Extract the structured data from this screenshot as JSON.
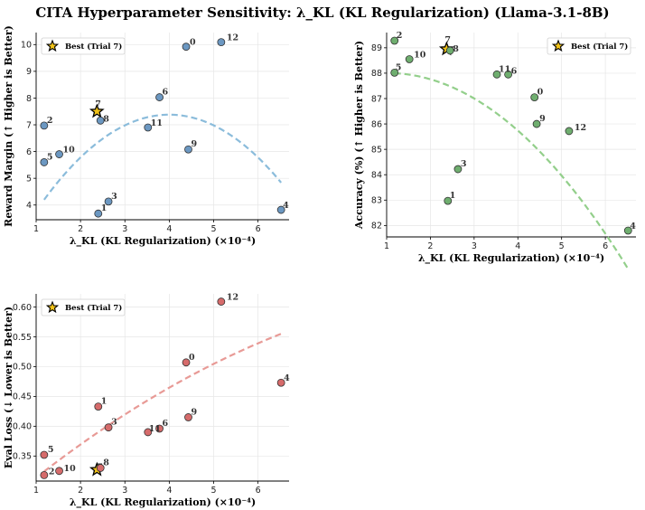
{
  "figure_title": "CITA Hyperparameter Sensitivity: λ_KL (KL Regularization) (Llama-3.1-8B)",
  "chart_data": [
    {
      "type": "scatter",
      "id": "reward",
      "ylabel": "Reward Margin (↑ Higher is Better)",
      "xlabel": "λ_KL (KL Regularization) (×10⁻⁴)",
      "xlim": [
        1.0,
        6.7
      ],
      "ylim": [
        3.45,
        10.45
      ],
      "xticks": [
        1,
        2,
        3,
        4,
        5,
        6
      ],
      "yticks": [
        4,
        5,
        6,
        7,
        8,
        9,
        10
      ],
      "color": "#6c98c2",
      "trend_color": "#8bbcdb",
      "legend": {
        "label": "Best (Trial 7)",
        "placement": "upper-left"
      },
      "best_trial": 7,
      "points": [
        {
          "trial": "0",
          "x": 4.38,
          "y": 9.92
        },
        {
          "trial": "1",
          "x": 2.4,
          "y": 3.68
        },
        {
          "trial": "2",
          "x": 1.18,
          "y": 6.97
        },
        {
          "trial": "3",
          "x": 2.63,
          "y": 4.13
        },
        {
          "trial": "4",
          "x": 6.52,
          "y": 3.82
        },
        {
          "trial": "5",
          "x": 1.18,
          "y": 5.6
        },
        {
          "trial": "6",
          "x": 3.78,
          "y": 8.03
        },
        {
          "trial": "7",
          "x": 2.37,
          "y": 7.5
        },
        {
          "trial": "8",
          "x": 2.45,
          "y": 7.16
        },
        {
          "trial": "9",
          "x": 4.43,
          "y": 6.08
        },
        {
          "trial": "10",
          "x": 1.52,
          "y": 5.9
        },
        {
          "trial": "11",
          "x": 3.52,
          "y": 6.9
        },
        {
          "trial": "12",
          "x": 5.17,
          "y": 10.09
        }
      ],
      "trend": [
        -0.4,
        3.2,
        0.98
      ]
    },
    {
      "type": "scatter",
      "id": "accuracy",
      "ylabel": "Accuracy (%) (↑ Higher is Better)",
      "xlabel": "λ_KL (KL Regularization) (×10⁻⁴)",
      "xlim": [
        1.0,
        6.7
      ],
      "ylim": [
        81.55,
        89.6
      ],
      "xticks": [
        1,
        2,
        3,
        4,
        5,
        6
      ],
      "yticks": [
        82,
        83,
        84,
        85,
        86,
        87,
        88,
        89
      ],
      "color": "#6fae6f",
      "trend_color": "#93cf8b",
      "legend": {
        "label": "Best (Trial 7)",
        "placement": "upper-right"
      },
      "best_trial": 7,
      "points": [
        {
          "trial": "0",
          "x": 4.38,
          "y": 87.05
        },
        {
          "trial": "1",
          "x": 2.4,
          "y": 82.97
        },
        {
          "trial": "2",
          "x": 1.18,
          "y": 89.28
        },
        {
          "trial": "3",
          "x": 2.63,
          "y": 84.22
        },
        {
          "trial": "4",
          "x": 6.52,
          "y": 81.8
        },
        {
          "trial": "5",
          "x": 1.18,
          "y": 88.02
        },
        {
          "trial": "6",
          "x": 3.78,
          "y": 87.95
        },
        {
          "trial": "7",
          "x": 2.37,
          "y": 88.95
        },
        {
          "trial": "8",
          "x": 2.45,
          "y": 88.89
        },
        {
          "trial": "9",
          "x": 4.43,
          "y": 86.0
        },
        {
          "trial": "10",
          "x": 1.52,
          "y": 88.55
        },
        {
          "trial": "11",
          "x": 3.52,
          "y": 87.95
        },
        {
          "trial": "12",
          "x": 5.17,
          "y": 85.72
        }
      ],
      "trend": [
        -0.255,
        0.52,
        87.74
      ]
    },
    {
      "type": "scatter",
      "id": "evalloss",
      "ylabel": "Eval Loss (↓ Lower is Better)",
      "xlabel": "λ_KL (KL Regularization) (×10⁻⁴)",
      "xlim": [
        1.0,
        6.7
      ],
      "ylim": [
        0.308,
        0.622
      ],
      "xticks": [
        1,
        2,
        3,
        4,
        5,
        6
      ],
      "yticks": [
        0.35,
        0.4,
        0.45,
        0.5,
        0.55,
        0.6
      ],
      "ytick_format": 2,
      "color": "#d66b6b",
      "trend_color": "#e89a96",
      "legend": {
        "label": "Best (Trial 7)",
        "placement": "upper-left"
      },
      "best_trial": 7,
      "points": [
        {
          "trial": "0",
          "x": 4.38,
          "y": 0.507
        },
        {
          "trial": "1",
          "x": 2.4,
          "y": 0.433
        },
        {
          "trial": "2",
          "x": 1.18,
          "y": 0.318
        },
        {
          "trial": "3",
          "x": 2.63,
          "y": 0.398
        },
        {
          "trial": "4",
          "x": 6.52,
          "y": 0.473
        },
        {
          "trial": "5",
          "x": 1.18,
          "y": 0.352
        },
        {
          "trial": "6",
          "x": 3.78,
          "y": 0.396
        },
        {
          "trial": "7",
          "x": 2.37,
          "y": 0.327
        },
        {
          "trial": "8",
          "x": 2.45,
          "y": 0.33
        },
        {
          "trial": "9",
          "x": 4.43,
          "y": 0.415
        },
        {
          "trial": "10",
          "x": 1.52,
          "y": 0.325
        },
        {
          "trial": "11",
          "x": 3.52,
          "y": 0.39
        },
        {
          "trial": "12",
          "x": 5.17,
          "y": 0.609
        }
      ],
      "trend": [
        -0.00262,
        0.0634,
        0.253
      ]
    }
  ]
}
